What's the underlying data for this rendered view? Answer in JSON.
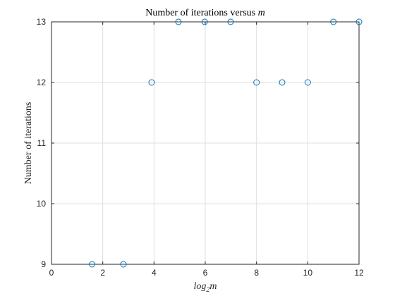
{
  "chart_data": {
    "type": "scatter",
    "title": "Number of iterations versus ",
    "title_variable": "m",
    "xlabel": "log",
    "xlabel_subscript": "2",
    "xlabel_variable": "m",
    "ylabel": "Number of iterations",
    "xlim": [
      0,
      12
    ],
    "ylim": [
      9,
      13
    ],
    "xticks": [
      0,
      2,
      4,
      6,
      8,
      10,
      12
    ],
    "yticks": [
      9,
      10,
      11,
      12,
      13
    ],
    "grid": true,
    "marker": "circle-open",
    "marker_color": "#0072BD",
    "series": [
      {
        "x": [
          1.585,
          2.807,
          3.907,
          4.954,
          5.977,
          6.989,
          8,
          9,
          10,
          11,
          12
        ],
        "y": [
          9,
          9,
          12,
          13,
          13,
          13,
          12,
          12,
          12,
          13,
          13
        ]
      }
    ]
  }
}
